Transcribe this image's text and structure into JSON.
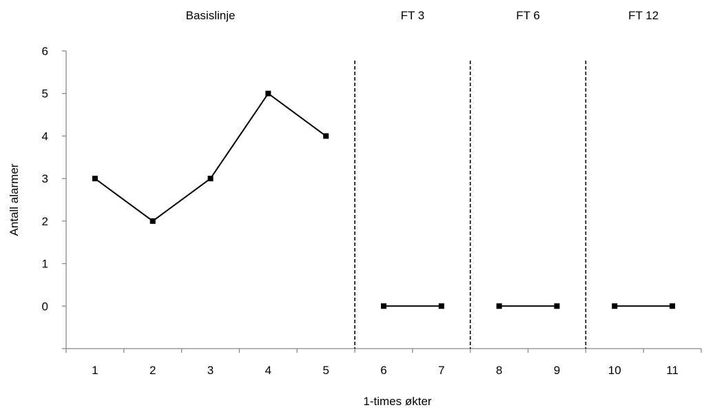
{
  "chart_data": {
    "type": "line",
    "title": "",
    "xlabel": "1-times økter",
    "ylabel": "Antall alarmer",
    "x_categories": [
      "1",
      "2",
      "3",
      "4",
      "5",
      "6",
      "7",
      "8",
      "9",
      "10",
      "11"
    ],
    "y_ticks": [
      "0",
      "1",
      "2",
      "3",
      "4",
      "5",
      "6"
    ],
    "ylim": [
      -1,
      6
    ],
    "grid": false,
    "phases": [
      {
        "label": "Basislinje",
        "x": [
          1,
          2,
          3,
          4,
          5
        ],
        "values": [
          3,
          2,
          3,
          5,
          4
        ]
      },
      {
        "label": "FT 3",
        "x": [
          6,
          7
        ],
        "values": [
          0,
          0
        ]
      },
      {
        "label": "FT 6",
        "x": [
          8,
          9
        ],
        "values": [
          0,
          0
        ]
      },
      {
        "label": "FT 12",
        "x": [
          10,
          11
        ],
        "values": [
          0,
          0
        ]
      }
    ],
    "phase_change_lines_after": [
      5,
      7,
      9
    ],
    "marker": "square",
    "line_color": "#000000"
  }
}
